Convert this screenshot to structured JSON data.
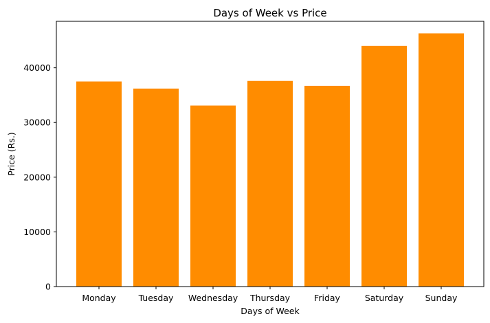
{
  "chart_data": {
    "type": "bar",
    "title": "Days of Week vs Price",
    "xlabel": "Days of Week",
    "ylabel": "Price (Rs.)",
    "categories": [
      "Monday",
      "Tuesday",
      "Wednesday",
      "Thursday",
      "Friday",
      "Saturday",
      "Sunday"
    ],
    "values": [
      37500,
      36200,
      33100,
      37600,
      36700,
      44000,
      46300
    ],
    "ylim": [
      0,
      48500
    ],
    "yticks": [
      0,
      10000,
      20000,
      30000,
      40000
    ],
    "ytick_labels": [
      "0",
      "10000",
      "20000",
      "30000",
      "40000"
    ],
    "bar_color": "#ff8c00",
    "grid": false,
    "legend": "none"
  }
}
